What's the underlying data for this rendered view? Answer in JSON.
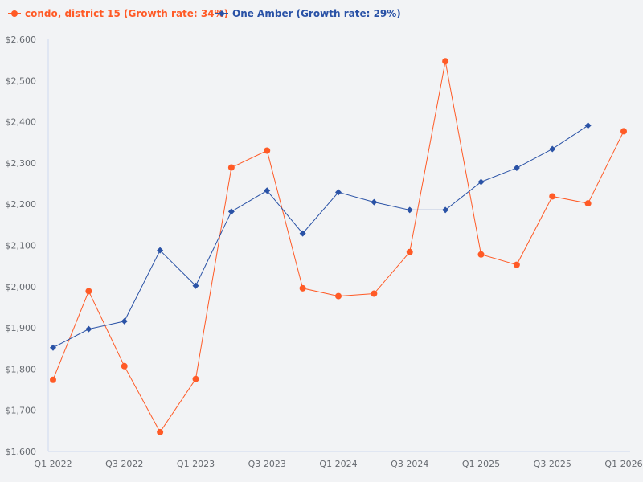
{
  "chart_data": {
    "type": "line",
    "title": "",
    "xlabel": "",
    "ylabel": "",
    "ylim": [
      1600,
      2600
    ],
    "yticks": [
      "$1,600",
      "$1,700",
      "$1,800",
      "$1,900",
      "$2,000",
      "$2,100",
      "$2,200",
      "$2,300",
      "$2,400",
      "$2,500",
      "$2,600"
    ],
    "ytick_values": [
      1600,
      1700,
      1800,
      1900,
      2000,
      2100,
      2200,
      2300,
      2400,
      2500,
      2600
    ],
    "x": [
      "Q1 2022",
      "Q2 2022",
      "Q3 2022",
      "Q4 2022",
      "Q1 2023",
      "Q2 2023",
      "Q3 2023",
      "Q4 2023",
      "Q1 2024",
      "Q2 2024",
      "Q3 2024",
      "Q4 2024",
      "Q1 2025",
      "Q2 2025",
      "Q3 2025",
      "Q4 2025",
      "Q1 2026"
    ],
    "xtick_labels": [
      "Q1 2022",
      "Q3 2022",
      "Q1 2023",
      "Q3 2023",
      "Q1 2024",
      "Q3 2024",
      "Q1 2025",
      "Q3 2025",
      "Q1 2026"
    ],
    "grid": false,
    "legend_position": "top-left",
    "series": [
      {
        "name": "condo, district 15 (Growth rate: 34%)",
        "color": "#ff5a26",
        "marker": "circle",
        "values": [
          1774,
          1989,
          1807,
          1647,
          1776,
          2289,
          2330,
          1996,
          1977,
          1983,
          2084,
          2547,
          2078,
          2053,
          2219,
          2202,
          2377
        ]
      },
      {
        "name": "One Amber (Growth rate: 29%)",
        "color": "#2a52a6",
        "marker": "diamond",
        "values": [
          1852,
          1897,
          1916,
          2088,
          2002,
          2182,
          2233,
          2129,
          2229,
          2205,
          2186,
          2186,
          2254,
          2288,
          2334,
          2391,
          null
        ]
      }
    ]
  }
}
